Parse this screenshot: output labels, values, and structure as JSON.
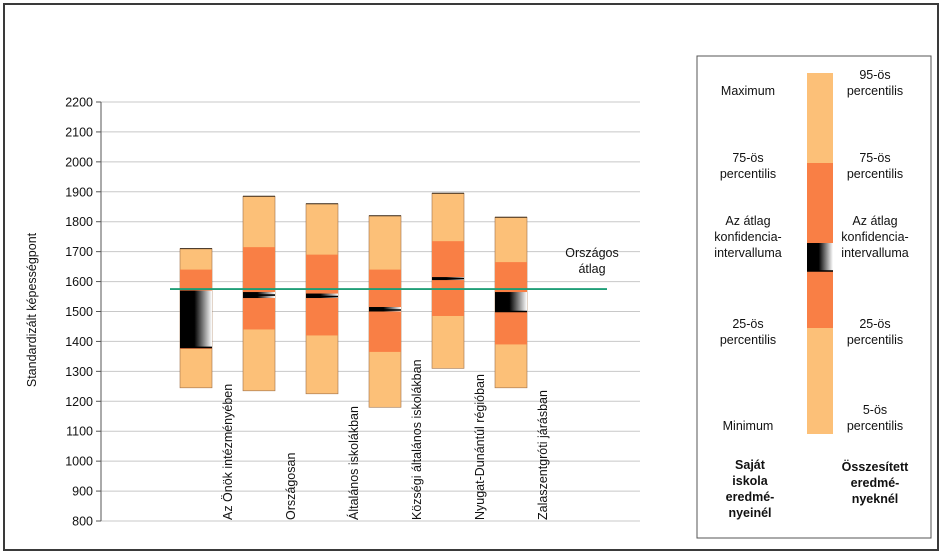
{
  "chart_data": {
    "type": "box",
    "ylabel": "Standardizált képességpont",
    "ylim": [
      800,
      2200
    ],
    "yticks": [
      800,
      900,
      1000,
      1100,
      1200,
      1300,
      1400,
      1500,
      1600,
      1700,
      1800,
      1900,
      2000,
      2100,
      2200
    ],
    "categories": [
      "Az Önök intézményében",
      "Országosan",
      "Általános iskolákban",
      "Községi általános iskolákban",
      "Nyugat-Dunántúl régióban",
      "Zalaszentgróti járásban"
    ],
    "series": [
      {
        "min": 1245,
        "p25": 1375,
        "ci_low": 1380,
        "mean": 1380,
        "ci_high": 1570,
        "p75": 1640,
        "max": 1710
      },
      {
        "min": 1235,
        "p25": 1440,
        "ci_low": 1545,
        "mean": 1555,
        "ci_high": 1565,
        "p75": 1715,
        "max": 1885
      },
      {
        "min": 1225,
        "p25": 1420,
        "ci_low": 1545,
        "mean": 1550,
        "ci_high": 1560,
        "p75": 1690,
        "max": 1860
      },
      {
        "min": 1180,
        "p25": 1365,
        "ci_low": 1500,
        "mean": 1505,
        "ci_high": 1515,
        "p75": 1640,
        "max": 1820
      },
      {
        "min": 1310,
        "p25": 1485,
        "ci_low": 1605,
        "mean": 1610,
        "ci_high": 1615,
        "p75": 1735,
        "max": 1895
      },
      {
        "min": 1245,
        "p25": 1390,
        "ci_low": 1500,
        "mean": 1500,
        "ci_high": 1565,
        "p75": 1665,
        "max": 1815
      }
    ],
    "national_average": 1575,
    "national_average_label": [
      "Országos",
      "átlag"
    ],
    "colors": {
      "outer": "#fcc078",
      "inner": "#f97f45",
      "ci_dark": "#000000",
      "line": "#1f9e77",
      "grid": "#c8c8c8"
    },
    "legend": {
      "left_labels": [
        [
          "Maximum"
        ],
        [
          "75-ös",
          "percentilis"
        ],
        [
          "Az átlag",
          "konfidencia-",
          "intervalluma"
        ],
        [
          "25-ös",
          "percentilis"
        ],
        [
          "Minimum"
        ]
      ],
      "right_labels": [
        [
          "95-ös",
          "percentilis"
        ],
        [
          "75-ös",
          "percentilis"
        ],
        [
          "Az átlag",
          "konfidencia-",
          "intervalluma"
        ],
        [
          "25-ös",
          "percentilis"
        ],
        [
          "5-ös",
          "percentilis"
        ]
      ],
      "left_footer": [
        "Saját",
        "iskola",
        "eredmé-",
        "nyeinél"
      ],
      "right_footer": [
        "Összesített",
        "eredmé-",
        "nyeknél"
      ]
    }
  }
}
